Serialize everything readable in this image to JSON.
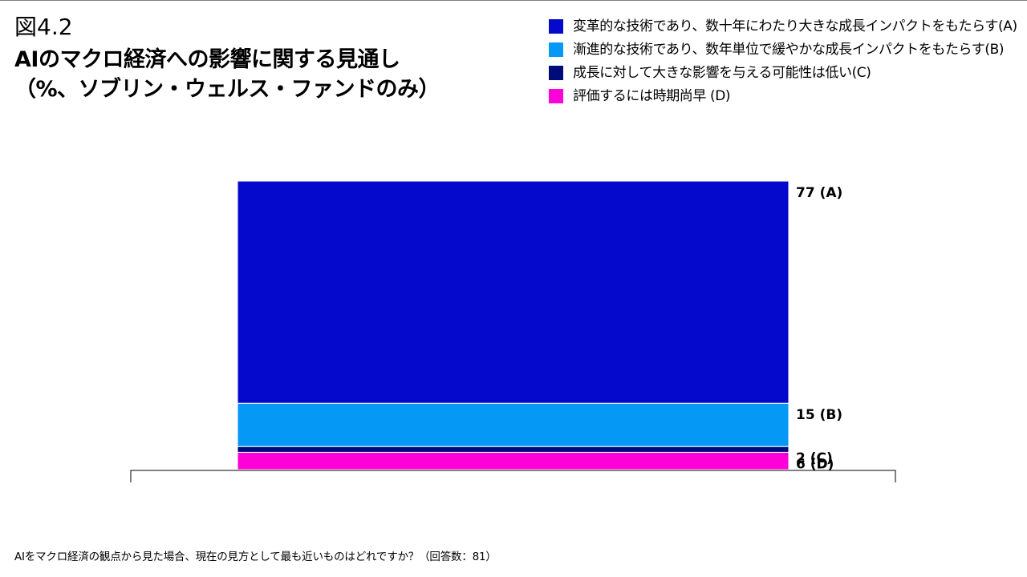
{
  "header": {
    "figure_label": "図4.2",
    "title": "AIのマクロ経済への影響に関する見通し",
    "subtitle": "（%、ソブリン・ウェルス・ファンドのみ）"
  },
  "chart_data": {
    "type": "bar",
    "stacked": true,
    "orientation": "vertical",
    "categories": [
      ""
    ],
    "series": [
      {
        "name": "変革的な技術であり、数十年にわたり大きな成長インパクトをもたらす(A)",
        "values": [
          77
        ],
        "data_label": "77 (A)",
        "color": "#0509CC"
      },
      {
        "name": "漸進的な技術であり、数年単位で緩やかな成長インパクトをもたらす(B)",
        "values": [
          15
        ],
        "data_label": "15 (B)",
        "color": "#0599F5"
      },
      {
        "name": "成長に対して大きな影響を与える可能性は低い(C)",
        "values": [
          2
        ],
        "data_label": "2 (C)",
        "color": "#000A78"
      },
      {
        "name": "評価するには時期尚早 (D)",
        "values": [
          6
        ],
        "data_label": "6 (D)",
        "color": "#FF00D9"
      }
    ],
    "stack_order_bottom_to_top": [
      "D",
      "C",
      "B",
      "A"
    ],
    "ylim": [
      0,
      100
    ],
    "grid": false,
    "legend_position": "top-right"
  },
  "footnote": "AIをマクロ経済の観点から見た場合、現在の見方として最も近いものはどれですか？（回答数：81）"
}
